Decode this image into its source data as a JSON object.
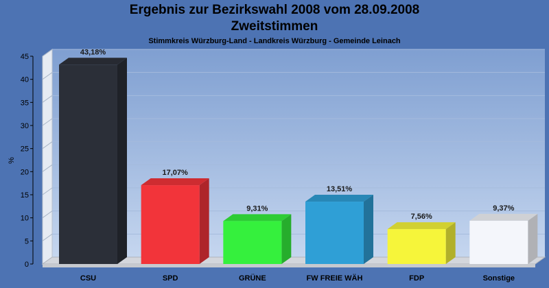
{
  "title": "Ergebnis zur Bezirkswahl 2008 vom 28.09.2008",
  "subtitle": "Zweitstimmen",
  "caption": "Stimmkreis Würzburg-Land - Landkreis Würzburg - Gemeinde Leinach",
  "chart_data": {
    "type": "bar",
    "title": "Ergebnis zur Bezirkswahl 2008 vom 28.09.2008",
    "subtitle": "Zweitstimmen",
    "xlabel": "",
    "ylabel": "%",
    "ylim": [
      0,
      45
    ],
    "yticks": [
      0,
      5,
      10,
      15,
      20,
      25,
      30,
      35,
      40,
      45
    ],
    "categories": [
      "CSU",
      "SPD",
      "GRÜNE",
      "FW FREIE WÄH",
      "FDP",
      "Sonstige"
    ],
    "values": [
      43.18,
      17.07,
      9.31,
      13.51,
      7.56,
      9.37
    ],
    "data_labels": [
      "43,18%",
      "17,07%",
      "9,31%",
      "13,51%",
      "7,56%",
      "9,37%"
    ],
    "colors": [
      "#2b2f38",
      "#f2343a",
      "#35f03d",
      "#2f9fd6",
      "#f6f53a",
      "#f4f6fb"
    ],
    "grid": true,
    "legend": "none"
  }
}
